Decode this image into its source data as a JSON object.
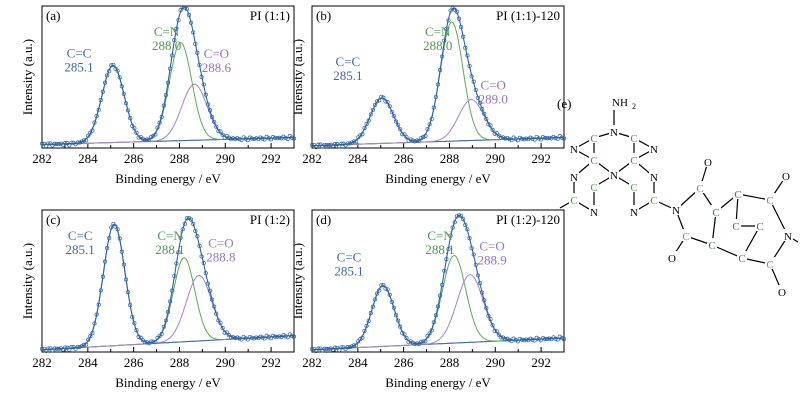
{
  "colors": {
    "frame": "#000000",
    "data_points": "#2a63a8",
    "fit_envelope": "#2a63a8",
    "cc_component": "#3a6aa8",
    "cn_component": "#5aaa5a",
    "co_component": "#a582c8",
    "background": "#8a8aa6",
    "cc_label": "#3a6aa8",
    "cn_label": "#4a9a4a",
    "co_label": "#9a72c0"
  },
  "chart_data": [
    {
      "type": "line",
      "panel_letter": "(a)",
      "title": "PI (1:1)",
      "xlabel": "Binding energy / eV",
      "ylabel": "Intensity (a.u.)",
      "xlim": [
        282,
        293
      ],
      "ylim": [
        0,
        1.25
      ],
      "xticks": [
        "282",
        "284",
        "286",
        "288",
        "290",
        "292"
      ],
      "background": {
        "start": 0.03,
        "end": 0.09
      },
      "peaks": [
        {
          "name": "C=C",
          "position": "285.1",
          "center": 285.1,
          "height": 0.66,
          "fwhm": 1.15
        },
        {
          "name": "C=N",
          "position": "288.0",
          "center": 288.05,
          "height": 0.84,
          "fwhm": 1.15
        },
        {
          "name": "C=O",
          "position": "288.6",
          "center": 288.65,
          "height": 0.48,
          "fwhm": 1.3
        }
      ]
    },
    {
      "type": "line",
      "panel_letter": "(b)",
      "title": "PI (1:1)-120",
      "xlabel": "Binding energy / eV",
      "ylabel": "Intensity (a.u.)",
      "xlim": [
        282,
        293
      ],
      "ylim": [
        0,
        1.25
      ],
      "xticks": [
        "282",
        "284",
        "286",
        "288",
        "290",
        "292"
      ],
      "background": {
        "start": 0.02,
        "end": 0.09
      },
      "peaks": [
        {
          "name": "C=C",
          "position": "285.1",
          "center": 285.05,
          "height": 0.39,
          "fwhm": 1.2
        },
        {
          "name": "C=N",
          "position": "288.0",
          "center": 288.1,
          "height": 1.02,
          "fwhm": 1.15
        },
        {
          "name": "C=O",
          "position": "289.0",
          "center": 288.95,
          "height": 0.35,
          "fwhm": 1.3
        }
      ]
    },
    {
      "type": "line",
      "panel_letter": "(c)",
      "title": "PI (1:2)",
      "xlabel": "Binding energy / eV",
      "ylabel": "Intensity (a.u.)",
      "xlim": [
        282,
        293
      ],
      "ylim": [
        0,
        1.25
      ],
      "xticks": [
        "282",
        "284",
        "286",
        "288",
        "290",
        "292"
      ],
      "background": {
        "start": 0.02,
        "end": 0.14
      },
      "peaks": [
        {
          "name": "C=C",
          "position": "285.1",
          "center": 285.15,
          "height": 1.04,
          "fwhm": 1.1
        },
        {
          "name": "C=N",
          "position": "288.1",
          "center": 288.2,
          "height": 0.72,
          "fwhm": 1.1
        },
        {
          "name": "C=O",
          "position": "288.8",
          "center": 288.85,
          "height": 0.56,
          "fwhm": 1.3
        }
      ]
    },
    {
      "type": "line",
      "panel_letter": "(d)",
      "title": "PI (1:2)-120",
      "xlabel": "Binding energy / eV",
      "ylabel": "Intensity (a.u.)",
      "xlim": [
        282,
        293
      ],
      "ylim": [
        0,
        1.25
      ],
      "xticks": [
        "282",
        "284",
        "286",
        "288",
        "290",
        "292"
      ],
      "background": {
        "start": 0.02,
        "end": 0.12
      },
      "peaks": [
        {
          "name": "C=C",
          "position": "285.1",
          "center": 285.1,
          "height": 0.52,
          "fwhm": 1.15
        },
        {
          "name": "C=N",
          "position": "288.1",
          "center": 288.2,
          "height": 0.75,
          "fwhm": 1.2
        },
        {
          "name": "C=O",
          "position": "288.9",
          "center": 288.9,
          "height": 0.58,
          "fwhm": 1.35
        }
      ]
    }
  ],
  "structure": {
    "panel_letter": "(e)",
    "amine_label": "NH",
    "amine_subscript": "2",
    "nitrogen": "N",
    "carbon": "C",
    "oxygen": "O"
  }
}
